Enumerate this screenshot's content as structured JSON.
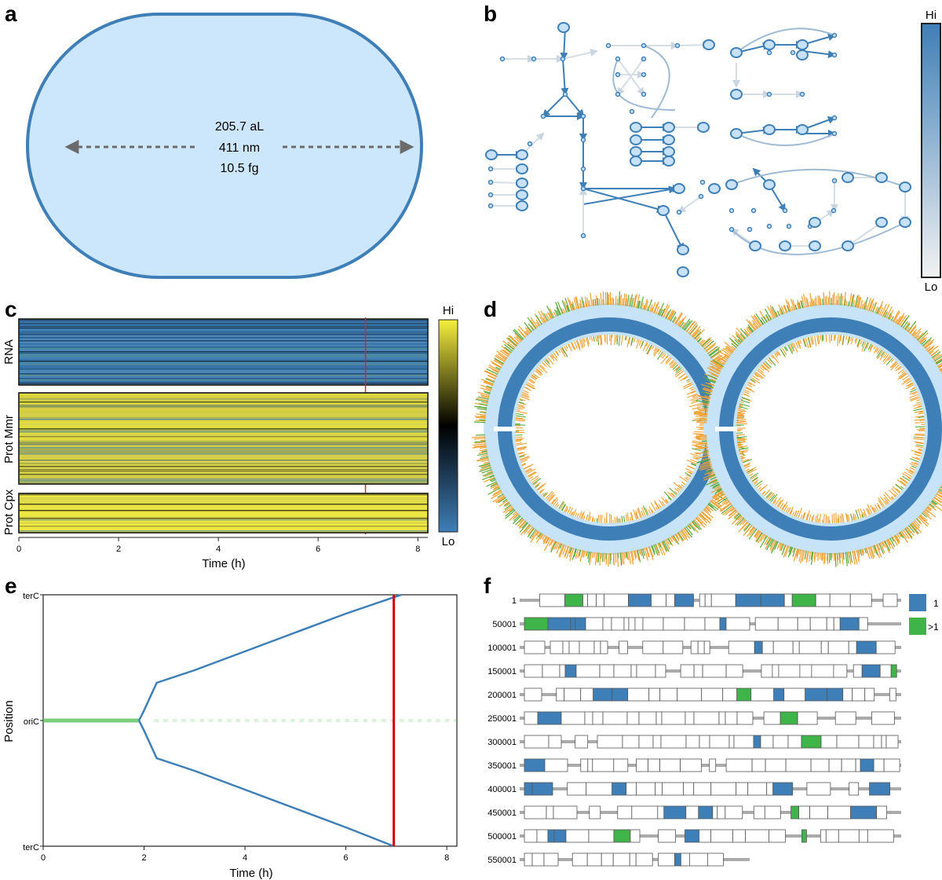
{
  "panels": {
    "a": "a",
    "b": "b",
    "c": "c",
    "d": "d",
    "e": "e",
    "f": "f"
  },
  "panel_a": {
    "volume": "205.7 aL",
    "length": "411 nm",
    "mass": "10.5 fg",
    "colors": {
      "fill": "#cce6fb",
      "stroke": "#3f7fb7",
      "arrow": "#6b6b6b"
    }
  },
  "panel_b": {
    "legend_hi": "Hi",
    "legend_lo": "Lo",
    "colors": {
      "node": "#3f7fb7",
      "node_fill": "#c7e2f8",
      "faint": "#d6dde3"
    }
  },
  "panel_c": {
    "rows": [
      "RNA",
      "Prot Mmr",
      "Prot Cpx"
    ],
    "xlabel": "Time (h)",
    "xticks": [
      "0",
      "2",
      "4",
      "6",
      "8"
    ],
    "legend_hi": "Hi",
    "legend_lo": "Lo",
    "marker_time_h": 6.95,
    "colors": {
      "low": "#3f7fb7",
      "mid": "#000000",
      "high": "#f5ef3c",
      "marker": "#d62728"
    }
  },
  "panel_d": {
    "colors": {
      "ring": "#3f7fb7",
      "ring_light": "#c6e3f8",
      "tick_orange": "#f0a030",
      "tick_green": "#5aaa3c"
    }
  },
  "panel_e": {
    "ylabel": "Position",
    "xlabel": "Time (h)",
    "yticks": [
      "terC",
      "oriC",
      "terC"
    ],
    "xticks": [
      "0",
      "2",
      "4",
      "6",
      "8"
    ],
    "marker_time_h": 6.95,
    "colors": {
      "line": "#3f7fb7",
      "origin": "#5cc15c",
      "marker": "#d00000"
    }
  },
  "panel_f": {
    "row_labels": [
      "1",
      "50001",
      "100001",
      "150001",
      "200001",
      "250001",
      "300001",
      "350001",
      "400001",
      "450001",
      "500001",
      "550001"
    ],
    "legend": [
      {
        "label": "1",
        "color": "#3f7fb7"
      },
      {
        "label": ">1",
        "color": "#3fb449"
      }
    ]
  },
  "chart_data": [
    {
      "type": "heatmap",
      "panel": "c",
      "xlabel": "Time (h)",
      "x_range": [
        0,
        8.2
      ],
      "xticks": [
        0,
        2,
        4,
        6,
        8
      ],
      "groups": [
        "RNA",
        "Prot Mmr",
        "Prot Cpx"
      ],
      "colorbar": [
        "Lo",
        "Hi"
      ],
      "vertical_marker_h": 6.95
    },
    {
      "type": "line",
      "panel": "e",
      "xlabel": "Time (h)",
      "ylabel": "Position",
      "x_range": [
        0,
        8.2
      ],
      "xticks": [
        0,
        2,
        4,
        6,
        8
      ],
      "yticks": [
        "terC",
        "oriC",
        "terC"
      ],
      "y_range": [
        -1,
        1
      ],
      "series": [
        {
          "name": "",
          "x": [
            1.9,
            2.0,
            2.25,
            3,
            4,
            5,
            6,
            6.95,
            7.1
          ],
          "y": [
            0,
            0.08,
            0.3,
            0.4,
            0.55,
            0.7,
            0.85,
            0.98,
            1.0
          ]
        },
        {
          "name": "",
          "x": [
            1.9,
            2.0,
            2.25,
            3,
            4,
            5,
            6,
            6.95
          ],
          "y": [
            0,
            -0.08,
            -0.3,
            -0.4,
            -0.55,
            -0.7,
            -0.85,
            -1.0
          ]
        }
      ],
      "origin_band_x": [
        0,
        1.9
      ],
      "vertical_marker_h": 6.95
    }
  ]
}
